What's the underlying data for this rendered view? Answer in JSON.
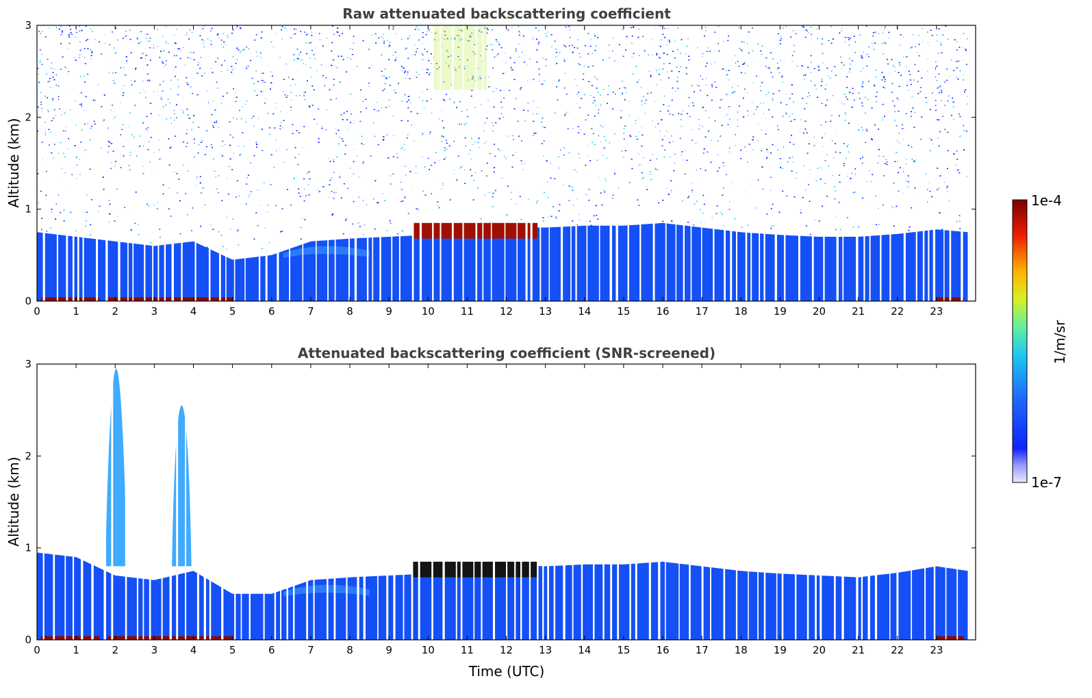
{
  "chart_data": [
    {
      "type": "heatmap",
      "title": "Raw attenuated backscattering coefficient",
      "xlabel": "",
      "ylabel": "Altitude (km)",
      "xlim": [
        0,
        24
      ],
      "ylim": [
        0,
        3
      ],
      "xticks": [
        "0",
        "1",
        "2",
        "3",
        "4",
        "5",
        "6",
        "7",
        "8",
        "9",
        "10",
        "11",
        "12",
        "13",
        "14",
        "15",
        "16",
        "17",
        "18",
        "19",
        "20",
        "21",
        "22",
        "23"
      ],
      "yticks": [
        "0",
        "1",
        "2",
        "3"
      ],
      "screened": false,
      "boundary_layer_top_km": {
        "time_utc": [
          0,
          1,
          2,
          3,
          4,
          5,
          6,
          7,
          8,
          9,
          10,
          11,
          12,
          13,
          14,
          15,
          16,
          17,
          18,
          19,
          20,
          21,
          22,
          23,
          23.8
        ],
        "height": [
          0.75,
          0.7,
          0.65,
          0.6,
          0.65,
          0.45,
          0.5,
          0.65,
          0.68,
          0.7,
          0.72,
          0.78,
          0.8,
          0.8,
          0.82,
          0.82,
          0.85,
          0.8,
          0.75,
          0.72,
          0.7,
          0.7,
          0.73,
          0.78,
          0.75
        ]
      },
      "cloud_layer": {
        "time_range_utc": [
          9.6,
          12.8
        ],
        "base_km": 0.68,
        "top_km": 0.85
      }
    },
    {
      "type": "heatmap",
      "title": "Attenuated backscattering coefficient (SNR-screened)",
      "xlabel": "Time (UTC)",
      "ylabel": "Altitude (km)",
      "xlim": [
        0,
        24
      ],
      "ylim": [
        0,
        3
      ],
      "xticks": [
        "0",
        "1",
        "2",
        "3",
        "4",
        "5",
        "6",
        "7",
        "8",
        "9",
        "10",
        "11",
        "12",
        "13",
        "14",
        "15",
        "16",
        "17",
        "18",
        "19",
        "20",
        "21",
        "22",
        "23"
      ],
      "yticks": [
        "0",
        "1",
        "2",
        "3"
      ],
      "screened": true,
      "boundary_layer_top_km": {
        "time_utc": [
          0,
          1,
          2,
          3,
          4,
          5,
          6,
          7,
          8,
          9,
          10,
          11,
          12,
          13,
          14,
          15,
          16,
          17,
          18,
          19,
          20,
          21,
          22,
          23,
          23.8
        ],
        "height": [
          0.95,
          0.9,
          0.7,
          0.65,
          0.75,
          0.5,
          0.5,
          0.65,
          0.68,
          0.7,
          0.72,
          0.78,
          0.82,
          0.8,
          0.82,
          0.82,
          0.85,
          0.8,
          0.75,
          0.72,
          0.7,
          0.68,
          0.73,
          0.8,
          0.75
        ]
      },
      "plumes": [
        {
          "time_range_utc": [
            1.75,
            2.3
          ],
          "top_km": 2.95
        },
        {
          "time_range_utc": [
            3.45,
            3.95
          ],
          "top_km": 2.55
        }
      ],
      "cloud_layer": {
        "time_range_utc": [
          9.6,
          12.8
        ],
        "base_km": 0.68,
        "top_km": 0.85
      }
    }
  ],
  "colorbar": {
    "label": "1/m/sr",
    "max_label": "1e-4",
    "min_label": "1e-7",
    "scale": "log",
    "range": [
      1e-07,
      0.0001
    ]
  }
}
